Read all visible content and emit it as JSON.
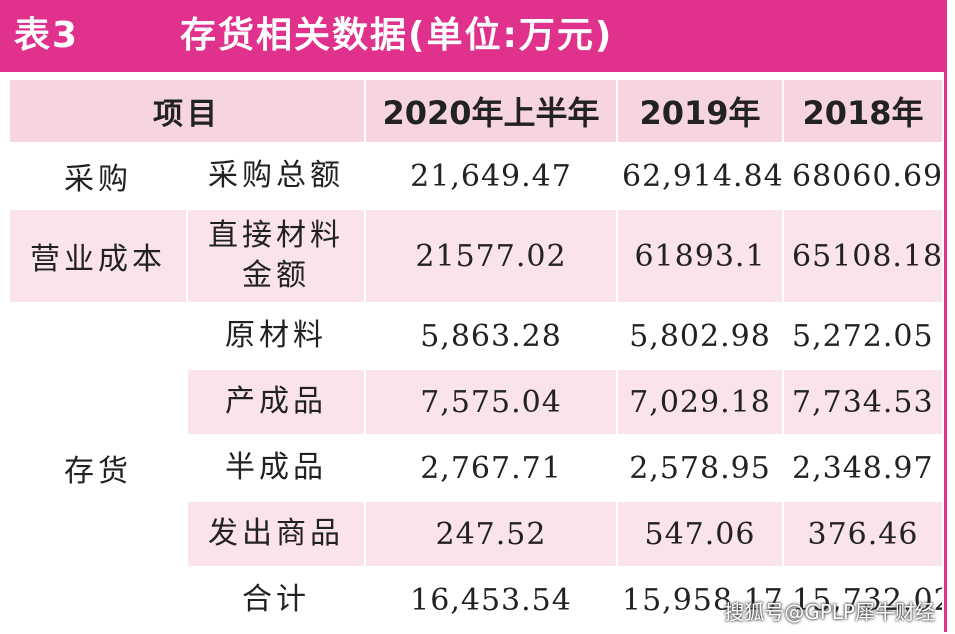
{
  "title": {
    "table_no": "表3",
    "text": "存货相关数据(单位:万元)"
  },
  "table": {
    "headers": [
      "项目",
      "2020年上半年",
      "2019年",
      "2018年"
    ],
    "rows": [
      {
        "group": "采购",
        "item": "采购总额",
        "v2020": "21,649.47",
        "v2019": "62,914.84",
        "v2018": "68060.69"
      },
      {
        "group": "营业成本",
        "item_line1": "直接材料",
        "item_line2": "金额",
        "v2020": "21577.02",
        "v2019": "61893.1",
        "v2018": "65108.18"
      },
      {
        "group": "存货",
        "item": "原材料",
        "v2020": "5,863.28",
        "v2019": "5,802.98",
        "v2018": "5,272.05"
      },
      {
        "item": "产成品",
        "v2020": "7,575.04",
        "v2019": "7,029.18",
        "v2018": "7,734.53"
      },
      {
        "item": "半成品",
        "v2020": "2,767.71",
        "v2019": "2,578.95",
        "v2018": "2,348.97"
      },
      {
        "item": "发出商品",
        "v2020": "247.52",
        "v2019": "547.06",
        "v2018": "376.46"
      },
      {
        "item": "合计",
        "v2020": "16,453.54",
        "v2019": "15,958.17",
        "v2018": "15,732.02"
      }
    ]
  },
  "credit": "搜狐号@GPLP犀牛财经",
  "colors": {
    "accent": "#e0328c",
    "header_bg": "#f7d4e1",
    "row_pink": "#fbe3ec"
  }
}
